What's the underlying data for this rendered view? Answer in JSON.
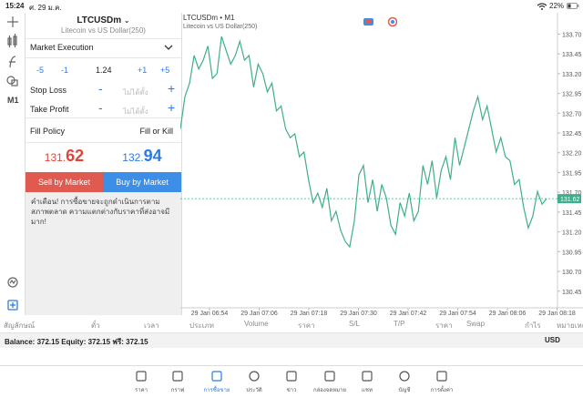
{
  "status_bar": {
    "time": "15:24",
    "date": "ศ. 29 ม.ค.",
    "battery": "22%"
  },
  "toolbar": {
    "timeframe": "M1"
  },
  "order_panel": {
    "symbol": "LTCUSDm",
    "symbol_desc": "Litecoin vs US Dollar(250)",
    "execution": "Market Execution",
    "volume_steps": [
      "-5",
      "-1",
      "+1",
      "+5"
    ],
    "volume": "1.24",
    "stop_loss": {
      "label": "Stop Loss",
      "placeholder": "ไม่ได้ตั้ง"
    },
    "take_profit": {
      "label": "Take Profit",
      "placeholder": "ไม่ได้ตั้ง"
    },
    "fill_policy": {
      "label": "Fill Policy",
      "value": "Fill or Kill"
    },
    "bid": {
      "head": "131.",
      "tail": "62"
    },
    "ask": {
      "head": "132.",
      "tail": "94"
    },
    "sell_button": "Sell by Market",
    "buy_button": "Buy by Market",
    "warning": "คำเตือน! การซื้อขายจะถูกดำเนินการตามสภาพตลาด ความแตกต่างกับราคาที่ส่งอาจมีมาก!"
  },
  "chart": {
    "type": "line",
    "title": "LTCUSDm • M1",
    "subtitle": "Litecoin vs US Dollar(250)",
    "color": "#3fae8c",
    "values": [
      132.5,
      132.91,
      133.08,
      133.43,
      133.26,
      133.37,
      133.55,
      133.14,
      133.2,
      133.67,
      133.49,
      133.32,
      133.43,
      133.61,
      133.37,
      133.43,
      133.03,
      133.32,
      133.2,
      132.97,
      133.08,
      132.73,
      132.79,
      132.5,
      132.39,
      132.44,
      132.15,
      132.21,
      131.86,
      131.57,
      131.69,
      131.51,
      131.75,
      131.34,
      131.46,
      131.22,
      131.08,
      131.01,
      131.34,
      131.92,
      132.04,
      131.57,
      131.86,
      131.46,
      131.8,
      131.63,
      131.28,
      131.17,
      131.57,
      131.4,
      131.69,
      131.34,
      131.46,
      132.04,
      131.8,
      132.1,
      131.63,
      131.98,
      132.15,
      131.86,
      132.39,
      132.04,
      132.27,
      132.5,
      132.73,
      132.91,
      132.62,
      132.79,
      132.5,
      132.21,
      132.39,
      132.15,
      132.1,
      131.8,
      131.86,
      131.51,
      131.25,
      131.4,
      131.71,
      131.55,
      131.62
    ],
    "ylim": [
      130.24,
      133.97
    ],
    "yticks": [
      {
        "value": 133.7,
        "label": "133.70"
      },
      133.45,
      {
        "value": 133.2,
        "label": "133.20"
      },
      132.95,
      {
        "value": 132.7,
        "label": "132.70"
      },
      132.45,
      {
        "value": 132.2,
        "label": "132.20"
      },
      131.95,
      {
        "value": 131.7,
        "label": "131.70"
      },
      131.45,
      {
        "value": 131.2,
        "label": "131.20"
      },
      130.95,
      {
        "value": 130.7,
        "label": "130.70"
      },
      130.45
    ],
    "x_labels": [
      "29 Jan 06:54",
      "29 Jan 07:06",
      "29 Jan 07:18",
      "29 Jan 07:30",
      "29 Jan 07:42",
      "29 Jan 07:54",
      "29 Jan 08:06",
      "29 Jan 08:18"
    ],
    "bid_line": 131.62
  },
  "table_header": [
    "สัญลักษณ์",
    "ตั๋ว",
    "เวลา",
    "ประเภท",
    "Volume",
    "ราคา",
    "S/L",
    "T/P",
    "ราคา",
    "Swap",
    "กำไร",
    "หมายเหตุ"
  ],
  "balance": {
    "text": "Balance: 372.15 Equity: 372.15 ฟรี: 372.15",
    "currency": "USD"
  },
  "nav": [
    "ราคา",
    "กราฟ",
    "การซื้อขาย",
    "ประวัติ",
    "ข่าว",
    "กล่องจดหมาย",
    "แชท",
    "บัญชี",
    "การตั้งค่า"
  ],
  "nav_active": 2
}
